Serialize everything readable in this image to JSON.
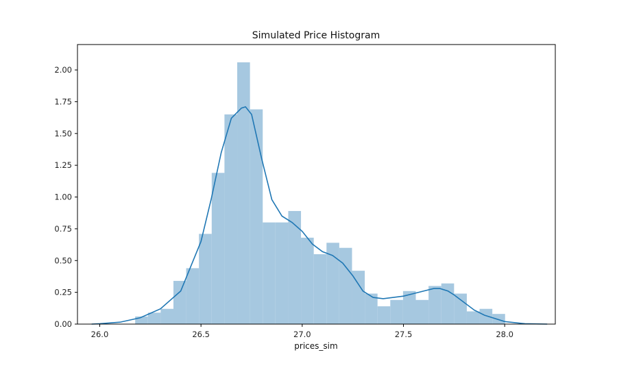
{
  "chart_data": {
    "type": "histogram",
    "title": "Simulated Price Histogram",
    "xlabel": "prices_sim",
    "ylabel": "",
    "xlim": [
      25.89,
      28.25
    ],
    "ylim": [
      0,
      2.2
    ],
    "x_ticks": [
      26.0,
      26.5,
      27.0,
      27.5,
      28.0
    ],
    "x_tick_labels": [
      "26.0",
      "26.5",
      "27.0",
      "27.5",
      "28.0"
    ],
    "y_ticks": [
      0,
      0.25,
      0.5,
      0.75,
      1.0,
      1.25,
      1.5,
      1.75,
      2.0
    ],
    "y_tick_labels": [
      "0.00",
      "0.25",
      "0.50",
      "0.75",
      "1.00",
      "1.25",
      "1.50",
      "1.75",
      "2.00"
    ],
    "grid": false,
    "colors": {
      "bars": "#a6c8e0",
      "kde": "#1f77b4",
      "axes": "#000000"
    },
    "bins": {
      "bin_edges": [
        26.175,
        26.238,
        26.301,
        26.364,
        26.427,
        26.49,
        26.553,
        26.616,
        26.679,
        26.742,
        26.805,
        26.868,
        26.931,
        26.994,
        27.057,
        27.12,
        27.183,
        27.246,
        27.309,
        27.372,
        27.435,
        27.498,
        27.561,
        27.624,
        27.687,
        27.75,
        27.813,
        27.876,
        27.939,
        28.002
      ],
      "values": [
        0.06,
        0.09,
        0.12,
        0.34,
        0.44,
        0.71,
        1.19,
        1.65,
        2.06,
        1.69,
        0.8,
        0.8,
        0.89,
        0.68,
        0.55,
        0.64,
        0.6,
        0.42,
        0.24,
        0.14,
        0.19,
        0.26,
        0.19,
        0.3,
        0.32,
        0.24,
        0.1,
        0.12,
        0.08
      ]
    },
    "kde": {
      "x": [
        25.96,
        26.0,
        26.1,
        26.2,
        26.3,
        26.4,
        26.5,
        26.55,
        26.6,
        26.65,
        26.7,
        26.72,
        26.75,
        26.8,
        26.85,
        26.9,
        26.95,
        27.0,
        27.05,
        27.1,
        27.15,
        27.2,
        27.25,
        27.3,
        27.35,
        27.4,
        27.45,
        27.5,
        27.55,
        27.6,
        27.65,
        27.68,
        27.72,
        27.75,
        27.8,
        27.85,
        27.9,
        28.0,
        28.1,
        28.21
      ],
      "y": [
        0.0,
        0.003,
        0.015,
        0.05,
        0.12,
        0.26,
        0.65,
        0.98,
        1.35,
        1.62,
        1.7,
        1.71,
        1.65,
        1.3,
        0.98,
        0.85,
        0.8,
        0.73,
        0.63,
        0.57,
        0.54,
        0.48,
        0.38,
        0.26,
        0.21,
        0.2,
        0.21,
        0.22,
        0.24,
        0.26,
        0.28,
        0.28,
        0.26,
        0.23,
        0.17,
        0.11,
        0.07,
        0.02,
        0.003,
        0.0
      ]
    }
  }
}
